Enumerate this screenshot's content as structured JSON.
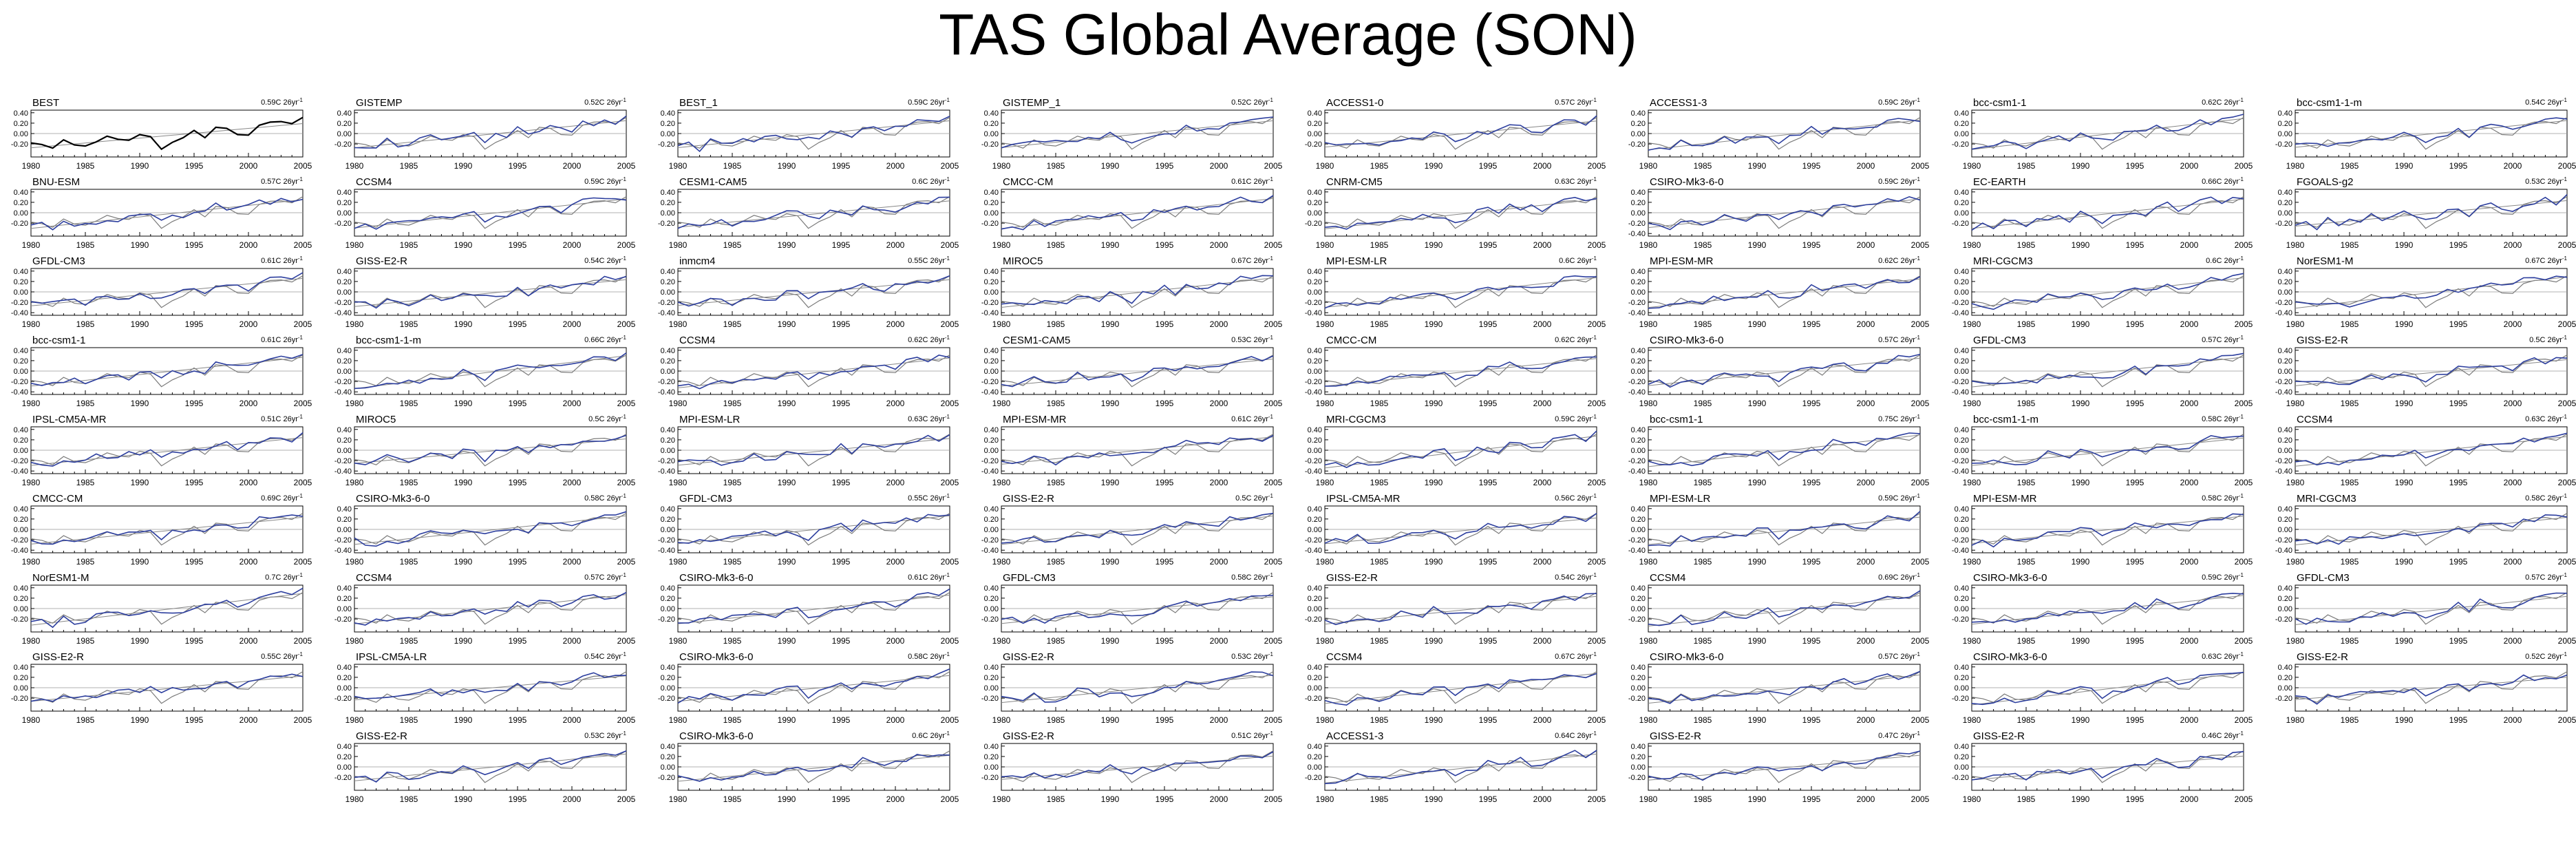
{
  "title": "TAS Global Average (SON)",
  "style": {
    "obs_color": "#000000",
    "obs_fit_color": "#888888",
    "model_color": "#2c3e9e",
    "model_fit_color": "#888888",
    "zero_line_color": "#999999"
  },
  "x_ticks": [
    "1980",
    "1985",
    "1990",
    "1995",
    "2000",
    "2005"
  ],
  "y_ticks_full": [
    "0.40",
    "0.20",
    "0.00",
    "-0.20",
    "-0.40"
  ],
  "y_ticks_short": [
    "0.40",
    "0.20",
    "0.00",
    "-0.20"
  ],
  "years": [
    1980,
    1981,
    1982,
    1983,
    1984,
    1985,
    1986,
    1987,
    1988,
    1989,
    1990,
    1991,
    1992,
    1993,
    1994,
    1995,
    1996,
    1997,
    1998,
    1999,
    2000,
    2001,
    2002,
    2003,
    2004,
    2005
  ],
  "obs_series": [
    -0.18,
    -0.21,
    -0.28,
    -0.12,
    -0.22,
    -0.24,
    -0.16,
    -0.05,
    -0.11,
    -0.13,
    -0.02,
    -0.06,
    -0.3,
    -0.17,
    -0.08,
    0.06,
    -0.08,
    0.12,
    0.1,
    -0.02,
    -0.03,
    0.16,
    0.22,
    0.23,
    0.19,
    0.31
  ],
  "rows": [
    [
      {
        "name": "BEST",
        "trend": "0.59C 26yr",
        "kind": "obs"
      },
      {
        "name": "GISTEMP",
        "trend": "0.52C 26yr"
      },
      {
        "name": "BEST_1",
        "trend": "0.59C 26yr"
      },
      {
        "name": "GISTEMP_1",
        "trend": "0.52C 26yr"
      },
      {
        "name": "ACCESS1-0",
        "trend": "0.57C 26yr"
      },
      {
        "name": "ACCESS1-3",
        "trend": "0.59C 26yr"
      },
      {
        "name": "bcc-csm1-1",
        "trend": "0.62C 26yr"
      },
      {
        "name": "bcc-csm1-1-m",
        "trend": "0.54C 26yr"
      }
    ],
    [
      {
        "name": "BNU-ESM",
        "trend": "0.57C 26yr"
      },
      {
        "name": "CCSM4",
        "trend": "0.59C 26yr"
      },
      {
        "name": "CESM1-CAM5",
        "trend": "0.6C 26yr"
      },
      {
        "name": "CMCC-CM",
        "trend": "0.61C 26yr"
      },
      {
        "name": "CNRM-CM5",
        "trend": "0.63C 26yr"
      },
      {
        "name": "CSIRO-Mk3-6-0",
        "trend": "0.59C 26yr"
      },
      {
        "name": "EC-EARTH",
        "trend": "0.66C 26yr"
      },
      {
        "name": "FGOALS-g2",
        "trend": "0.53C 26yr"
      }
    ],
    [
      {
        "name": "GFDL-CM3",
        "trend": "0.61C 26yr"
      },
      {
        "name": "GISS-E2-R",
        "trend": "0.54C 26yr"
      },
      {
        "name": "inmcm4",
        "trend": "0.55C 26yr"
      },
      {
        "name": "MIROC5",
        "trend": "0.67C 26yr"
      },
      {
        "name": "MPI-ESM-LR",
        "trend": "0.6C 26yr"
      },
      {
        "name": "MPI-ESM-MR",
        "trend": "0.62C 26yr"
      },
      {
        "name": "MRI-CGCM3",
        "trend": "0.6C 26yr"
      },
      {
        "name": "NorESM1-M",
        "trend": "0.67C 26yr"
      }
    ],
    [
      {
        "name": "bcc-csm1-1",
        "trend": "0.61C 26yr"
      },
      {
        "name": "bcc-csm1-1-m",
        "trend": "0.66C 26yr"
      },
      {
        "name": "CCSM4",
        "trend": "0.62C 26yr"
      },
      {
        "name": "CESM1-CAM5",
        "trend": "0.53C 26yr"
      },
      {
        "name": "CMCC-CM",
        "trend": "0.62C 26yr"
      },
      {
        "name": "CSIRO-Mk3-6-0",
        "trend": "0.57C 26yr"
      },
      {
        "name": "GFDL-CM3",
        "trend": "0.57C 26yr"
      },
      {
        "name": "GISS-E2-R",
        "trend": "0.5C 26yr"
      }
    ],
    [
      {
        "name": "IPSL-CM5A-MR",
        "trend": "0.51C 26yr"
      },
      {
        "name": "MIROC5",
        "trend": "0.5C 26yr"
      },
      {
        "name": "MPI-ESM-LR",
        "trend": "0.63C 26yr"
      },
      {
        "name": "MPI-ESM-MR",
        "trend": "0.61C 26yr"
      },
      {
        "name": "MRI-CGCM3",
        "trend": "0.59C 26yr"
      },
      {
        "name": "bcc-csm1-1",
        "trend": "0.75C 26yr"
      },
      {
        "name": "bcc-csm1-1-m",
        "trend": "0.58C 26yr"
      },
      {
        "name": "CCSM4",
        "trend": "0.63C 26yr"
      }
    ],
    [
      {
        "name": "CMCC-CM",
        "trend": "0.69C 26yr"
      },
      {
        "name": "CSIRO-Mk3-6-0",
        "trend": "0.58C 26yr"
      },
      {
        "name": "GFDL-CM3",
        "trend": "0.55C 26yr"
      },
      {
        "name": "GISS-E2-R",
        "trend": "0.5C 26yr"
      },
      {
        "name": "IPSL-CM5A-MR",
        "trend": "0.56C 26yr"
      },
      {
        "name": "MPI-ESM-LR",
        "trend": "0.59C 26yr"
      },
      {
        "name": "MPI-ESM-MR",
        "trend": "0.58C 26yr"
      },
      {
        "name": "MRI-CGCM3",
        "trend": "0.58C 26yr"
      }
    ],
    [
      {
        "name": "NorESM1-M",
        "trend": "0.7C 26yr"
      },
      {
        "name": "CCSM4",
        "trend": "0.57C 26yr"
      },
      {
        "name": "CSIRO-Mk3-6-0",
        "trend": "0.61C 26yr"
      },
      {
        "name": "GFDL-CM3",
        "trend": "0.58C 26yr"
      },
      {
        "name": "GISS-E2-R",
        "trend": "0.54C 26yr"
      },
      {
        "name": "CCSM4",
        "trend": "0.69C 26yr"
      },
      {
        "name": "CSIRO-Mk3-6-0",
        "trend": "0.59C 26yr"
      },
      {
        "name": "GFDL-CM3",
        "trend": "0.57C 26yr"
      }
    ],
    [
      {
        "name": "GISS-E2-R",
        "trend": "0.55C 26yr"
      },
      {
        "name": "IPSL-CM5A-LR",
        "trend": "0.54C 26yr"
      },
      {
        "name": "CSIRO-Mk3-6-0",
        "trend": "0.58C 26yr"
      },
      {
        "name": "GISS-E2-R",
        "trend": "0.53C 26yr"
      },
      {
        "name": "CCSM4",
        "trend": "0.67C 26yr"
      },
      {
        "name": "CSIRO-Mk3-6-0",
        "trend": "0.57C 26yr"
      },
      {
        "name": "CSIRO-Mk3-6-0",
        "trend": "0.63C 26yr"
      },
      {
        "name": "GISS-E2-R",
        "trend": "0.52C 26yr"
      }
    ],
    [
      null,
      {
        "name": "GISS-E2-R",
        "trend": "0.53C 26yr"
      },
      {
        "name": "CSIRO-Mk3-6-0",
        "trend": "0.6C 26yr"
      },
      {
        "name": "GISS-E2-R",
        "trend": "0.51C 26yr"
      },
      {
        "name": "ACCESS1-3",
        "trend": "0.64C 26yr"
      },
      {
        "name": "GISS-E2-R",
        "trend": "0.47C 26yr"
      },
      {
        "name": "GISS-E2-R",
        "trend": "0.46C 26yr"
      },
      null
    ]
  ],
  "chart_data": {
    "type": "line",
    "title": "TAS Global Average (SON)",
    "xlabel": "",
    "ylabel": "",
    "xlim": [
      1980,
      2005
    ],
    "ylim": [
      -0.45,
      0.45
    ],
    "x_ticks": [
      1980,
      1985,
      1990,
      1995,
      2000,
      2005
    ],
    "y_ticks": [
      0.4,
      0.2,
      0.0,
      -0.2,
      -0.4
    ],
    "grid": false,
    "legend": "none",
    "note_units": "°C anomaly",
    "reference_series": {
      "source": "BEST",
      "x": [
        1980,
        1981,
        1982,
        1983,
        1984,
        1985,
        1986,
        1987,
        1988,
        1989,
        1990,
        1991,
        1992,
        1993,
        1994,
        1995,
        1996,
        1997,
        1998,
        1999,
        2000,
        2001,
        2002,
        2003,
        2004,
        2005
      ],
      "y": [
        -0.18,
        -0.21,
        -0.28,
        -0.12,
        -0.22,
        -0.24,
        -0.16,
        -0.05,
        -0.11,
        -0.13,
        -0.02,
        -0.06,
        -0.3,
        -0.17,
        -0.08,
        0.06,
        -0.08,
        0.12,
        0.1,
        -0.02,
        -0.03,
        0.16,
        0.22,
        0.23,
        0.19,
        0.31
      ]
    },
    "panels_trend_C_per_26yr": [
      [
        "BEST",
        0.59
      ],
      [
        "GISTEMP",
        0.52
      ],
      [
        "BEST_1",
        0.59
      ],
      [
        "GISTEMP_1",
        0.52
      ],
      [
        "ACCESS1-0",
        0.57
      ],
      [
        "ACCESS1-3",
        0.59
      ],
      [
        "bcc-csm1-1",
        0.62
      ],
      [
        "bcc-csm1-1-m",
        0.54
      ],
      [
        "BNU-ESM",
        0.57
      ],
      [
        "CCSM4",
        0.59
      ],
      [
        "CESM1-CAM5",
        0.6
      ],
      [
        "CMCC-CM",
        0.61
      ],
      [
        "CNRM-CM5",
        0.63
      ],
      [
        "CSIRO-Mk3-6-0",
        0.59
      ],
      [
        "EC-EARTH",
        0.66
      ],
      [
        "FGOALS-g2",
        0.53
      ],
      [
        "GFDL-CM3",
        0.61
      ],
      [
        "GISS-E2-R",
        0.54
      ],
      [
        "inmcm4",
        0.55
      ],
      [
        "MIROC5",
        0.67
      ],
      [
        "MPI-ESM-LR",
        0.6
      ],
      [
        "MPI-ESM-MR",
        0.62
      ],
      [
        "MRI-CGCM3",
        0.6
      ],
      [
        "NorESM1-M",
        0.67
      ],
      [
        "bcc-csm1-1",
        0.61
      ],
      [
        "bcc-csm1-1-m",
        0.66
      ],
      [
        "CCSM4",
        0.62
      ],
      [
        "CESM1-CAM5",
        0.53
      ],
      [
        "CMCC-CM",
        0.62
      ],
      [
        "CSIRO-Mk3-6-0",
        0.57
      ],
      [
        "GFDL-CM3",
        0.57
      ],
      [
        "GISS-E2-R",
        0.5
      ],
      [
        "IPSL-CM5A-MR",
        0.51
      ],
      [
        "MIROC5",
        0.5
      ],
      [
        "MPI-ESM-LR",
        0.63
      ],
      [
        "MPI-ESM-MR",
        0.61
      ],
      [
        "MRI-CGCM3",
        0.59
      ],
      [
        "bcc-csm1-1",
        0.75
      ],
      [
        "bcc-csm1-1-m",
        0.58
      ],
      [
        "CCSM4",
        0.63
      ],
      [
        "CMCC-CM",
        0.69
      ],
      [
        "CSIRO-Mk3-6-0",
        0.58
      ],
      [
        "GFDL-CM3",
        0.55
      ],
      [
        "GISS-E2-R",
        0.5
      ],
      [
        "IPSL-CM5A-MR",
        0.56
      ],
      [
        "MPI-ESM-LR",
        0.59
      ],
      [
        "MPI-ESM-MR",
        0.58
      ],
      [
        "MRI-CGCM3",
        0.58
      ],
      [
        "NorESM1-M",
        0.7
      ],
      [
        "CCSM4",
        0.57
      ],
      [
        "CSIRO-Mk3-6-0",
        0.61
      ],
      [
        "GFDL-CM3",
        0.58
      ],
      [
        "GISS-E2-R",
        0.54
      ],
      [
        "CCSM4",
        0.69
      ],
      [
        "CSIRO-Mk3-6-0",
        0.59
      ],
      [
        "GFDL-CM3",
        0.57
      ],
      [
        "GISS-E2-R",
        0.55
      ],
      [
        "IPSL-CM5A-LR",
        0.54
      ],
      [
        "CSIRO-Mk3-6-0",
        0.58
      ],
      [
        "GISS-E2-R",
        0.53
      ],
      [
        "CCSM4",
        0.67
      ],
      [
        "CSIRO-Mk3-6-0",
        0.57
      ],
      [
        "CSIRO-Mk3-6-0",
        0.63
      ],
      [
        "GISS-E2-R",
        0.52
      ],
      [
        "GISS-E2-R",
        0.53
      ],
      [
        "CSIRO-Mk3-6-0",
        0.6
      ],
      [
        "GISS-E2-R",
        0.51
      ],
      [
        "ACCESS1-3",
        0.64
      ],
      [
        "GISS-E2-R",
        0.47
      ],
      [
        "GISS-E2-R",
        0.46
      ]
    ]
  }
}
